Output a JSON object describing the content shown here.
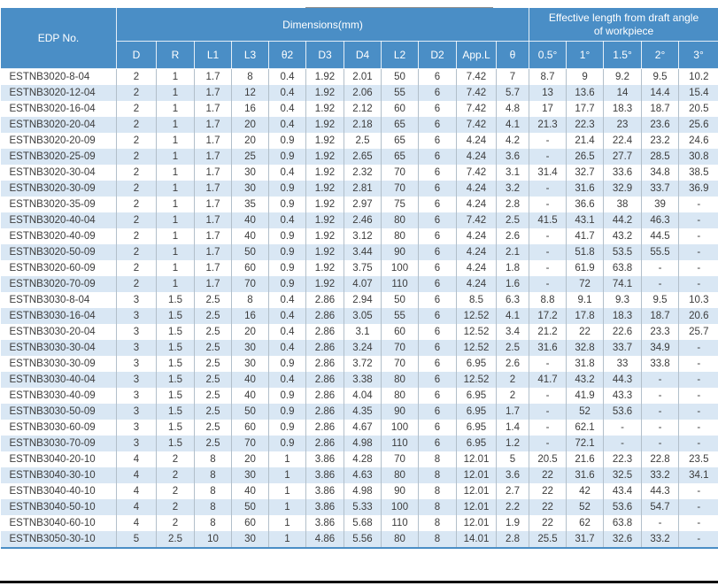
{
  "table": {
    "edp_header": "EDP No.",
    "dimensions_header": "Dimensions(mm)",
    "effective_header": "Effective length from draft angle of workpiece",
    "sub_headers": [
      "D",
      "R",
      "L1",
      "L3",
      "θ2",
      "D3",
      "D4",
      "L2",
      "D2",
      "App.L",
      "θ",
      "0.5°",
      "1°",
      "1.5°",
      "2°",
      "3°"
    ],
    "rows": [
      [
        "ESTNB3020-8-04",
        "2",
        "1",
        "1.7",
        "8",
        "0.4",
        "1.92",
        "2.01",
        "50",
        "6",
        "7.42",
        "7",
        "8.7",
        "9",
        "9.2",
        "9.5",
        "10.2"
      ],
      [
        "ESTNB3020-12-04",
        "2",
        "1",
        "1.7",
        "12",
        "0.4",
        "1.92",
        "2.06",
        "55",
        "6",
        "7.42",
        "5.7",
        "13",
        "13.6",
        "14",
        "14.4",
        "15.4"
      ],
      [
        "ESTNB3020-16-04",
        "2",
        "1",
        "1.7",
        "16",
        "0.4",
        "1.92",
        "2.12",
        "60",
        "6",
        "7.42",
        "4.8",
        "17",
        "17.7",
        "18.3",
        "18.7",
        "20.5"
      ],
      [
        "ESTNB3020-20-04",
        "2",
        "1",
        "1.7",
        "20",
        "0.4",
        "1.92",
        "2.18",
        "65",
        "6",
        "7.42",
        "4.1",
        "21.3",
        "22.3",
        "23",
        "23.6",
        "25.6"
      ],
      [
        "ESTNB3020-20-09",
        "2",
        "1",
        "1.7",
        "20",
        "0.9",
        "1.92",
        "2.5",
        "65",
        "6",
        "4.24",
        "4.2",
        "-",
        "21.4",
        "22.4",
        "23.2",
        "24.6"
      ],
      [
        "ESTNB3020-25-09",
        "2",
        "1",
        "1.7",
        "25",
        "0.9",
        "1.92",
        "2.65",
        "65",
        "6",
        "4.24",
        "3.6",
        "-",
        "26.5",
        "27.7",
        "28.5",
        "30.8"
      ],
      [
        "ESTNB3020-30-04",
        "2",
        "1",
        "1.7",
        "30",
        "0.4",
        "1.92",
        "2.32",
        "70",
        "6",
        "7.42",
        "3.1",
        "31.4",
        "32.7",
        "33.6",
        "34.8",
        "38.5"
      ],
      [
        "ESTNB3020-30-09",
        "2",
        "1",
        "1.7",
        "30",
        "0.9",
        "1.92",
        "2.81",
        "70",
        "6",
        "4.24",
        "3.2",
        "-",
        "31.6",
        "32.9",
        "33.7",
        "36.9"
      ],
      [
        "ESTNB3020-35-09",
        "2",
        "1",
        "1.7",
        "35",
        "0.9",
        "1.92",
        "2.97",
        "75",
        "6",
        "4.24",
        "2.8",
        "-",
        "36.6",
        "38",
        "39",
        "-"
      ],
      [
        "ESTNB3020-40-04",
        "2",
        "1",
        "1.7",
        "40",
        "0.4",
        "1.92",
        "2.46",
        "80",
        "6",
        "7.42",
        "2.5",
        "41.5",
        "43.1",
        "44.2",
        "46.3",
        "-"
      ],
      [
        "ESTNB3020-40-09",
        "2",
        "1",
        "1.7",
        "40",
        "0.9",
        "1.92",
        "3.12",
        "80",
        "6",
        "4.24",
        "2.6",
        "-",
        "41.7",
        "43.2",
        "44.5",
        "-"
      ],
      [
        "ESTNB3020-50-09",
        "2",
        "1",
        "1.7",
        "50",
        "0.9",
        "1.92",
        "3.44",
        "90",
        "6",
        "4.24",
        "2.1",
        "-",
        "51.8",
        "53.5",
        "55.5",
        "-"
      ],
      [
        "ESTNB3020-60-09",
        "2",
        "1",
        "1.7",
        "60",
        "0.9",
        "1.92",
        "3.75",
        "100",
        "6",
        "4.24",
        "1.8",
        "-",
        "61.9",
        "63.8",
        "-",
        "-"
      ],
      [
        "ESTNB3020-70-09",
        "2",
        "1",
        "1.7",
        "70",
        "0.9",
        "1.92",
        "4.07",
        "110",
        "6",
        "4.24",
        "1.6",
        "-",
        "72",
        "74.1",
        "-",
        "-"
      ],
      [
        "ESTNB3030-8-04",
        "3",
        "1.5",
        "2.5",
        "8",
        "0.4",
        "2.86",
        "2.94",
        "50",
        "6",
        "8.5",
        "6.3",
        "8.8",
        "9.1",
        "9.3",
        "9.5",
        "10.3"
      ],
      [
        "ESTNB3030-16-04",
        "3",
        "1.5",
        "2.5",
        "16",
        "0.4",
        "2.86",
        "3.05",
        "55",
        "6",
        "12.52",
        "4.1",
        "17.2",
        "17.8",
        "18.3",
        "18.7",
        "20.6"
      ],
      [
        "ESTNB3030-20-04",
        "3",
        "1.5",
        "2.5",
        "20",
        "0.4",
        "2.86",
        "3.1",
        "60",
        "6",
        "12.52",
        "3.4",
        "21.2",
        "22",
        "22.6",
        "23.3",
        "25.7"
      ],
      [
        "ESTNB3030-30-04",
        "3",
        "1.5",
        "2.5",
        "30",
        "0.4",
        "2.86",
        "3.24",
        "70",
        "6",
        "12.52",
        "2.5",
        "31.6",
        "32.8",
        "33.7",
        "34.9",
        "-"
      ],
      [
        "ESTNB3030-30-09",
        "3",
        "1.5",
        "2.5",
        "30",
        "0.9",
        "2.86",
        "3.72",
        "70",
        "6",
        "6.95",
        "2.6",
        "-",
        "31.8",
        "33",
        "33.8",
        "-"
      ],
      [
        "ESTNB3030-40-04",
        "3",
        "1.5",
        "2.5",
        "40",
        "0.4",
        "2.86",
        "3.38",
        "80",
        "6",
        "12.52",
        "2",
        "41.7",
        "43.2",
        "44.3",
        "-",
        "-"
      ],
      [
        "ESTNB3030-40-09",
        "3",
        "1.5",
        "2.5",
        "40",
        "0.9",
        "2.86",
        "4.04",
        "80",
        "6",
        "6.95",
        "2",
        "-",
        "41.9",
        "43.3",
        "-",
        "-"
      ],
      [
        "ESTNB3030-50-09",
        "3",
        "1.5",
        "2.5",
        "50",
        "0.9",
        "2.86",
        "4.35",
        "90",
        "6",
        "6.95",
        "1.7",
        "-",
        "52",
        "53.6",
        "-",
        "-"
      ],
      [
        "ESTNB3030-60-09",
        "3",
        "1.5",
        "2.5",
        "60",
        "0.9",
        "2.86",
        "4.67",
        "100",
        "6",
        "6.95",
        "1.4",
        "-",
        "62.1",
        "-",
        "-",
        "-"
      ],
      [
        "ESTNB3030-70-09",
        "3",
        "1.5",
        "2.5",
        "70",
        "0.9",
        "2.86",
        "4.98",
        "110",
        "6",
        "6.95",
        "1.2",
        "-",
        "72.1",
        "-",
        "-",
        "-"
      ],
      [
        "ESTNB3040-20-10",
        "4",
        "2",
        "8",
        "20",
        "1",
        "3.86",
        "4.28",
        "70",
        "8",
        "12.01",
        "5",
        "20.5",
        "21.6",
        "22.3",
        "22.8",
        "23.5"
      ],
      [
        "ESTNB3040-30-10",
        "4",
        "2",
        "8",
        "30",
        "1",
        "3.86",
        "4.63",
        "80",
        "8",
        "12.01",
        "3.6",
        "22",
        "31.6",
        "32.5",
        "33.2",
        "34.1"
      ],
      [
        "ESTNB3040-40-10",
        "4",
        "2",
        "8",
        "40",
        "1",
        "3.86",
        "4.98",
        "90",
        "8",
        "12.01",
        "2.7",
        "22",
        "42",
        "43.4",
        "44.3",
        "-"
      ],
      [
        "ESTNB3040-50-10",
        "4",
        "2",
        "8",
        "50",
        "1",
        "3.86",
        "5.33",
        "100",
        "8",
        "12.01",
        "2.2",
        "22",
        "52",
        "53.6",
        "54.7",
        "-"
      ],
      [
        "ESTNB3040-60-10",
        "4",
        "2",
        "8",
        "60",
        "1",
        "3.86",
        "5.68",
        "110",
        "8",
        "12.01",
        "1.9",
        "22",
        "62",
        "63.8",
        "-",
        "-"
      ],
      [
        "ESTNB3050-30-10",
        "5",
        "2.5",
        "10",
        "30",
        "1",
        "4.86",
        "5.56",
        "80",
        "8",
        "14.01",
        "2.8",
        "25.5",
        "31.7",
        "32.6",
        "33.2",
        "-"
      ]
    ]
  },
  "colors": {
    "header_bg": "#4a8ec6",
    "stripe": "#d9e7f4",
    "grid_line": "#b2bfca",
    "text": "#3c3c3c",
    "bottom_bar": "#101010"
  }
}
